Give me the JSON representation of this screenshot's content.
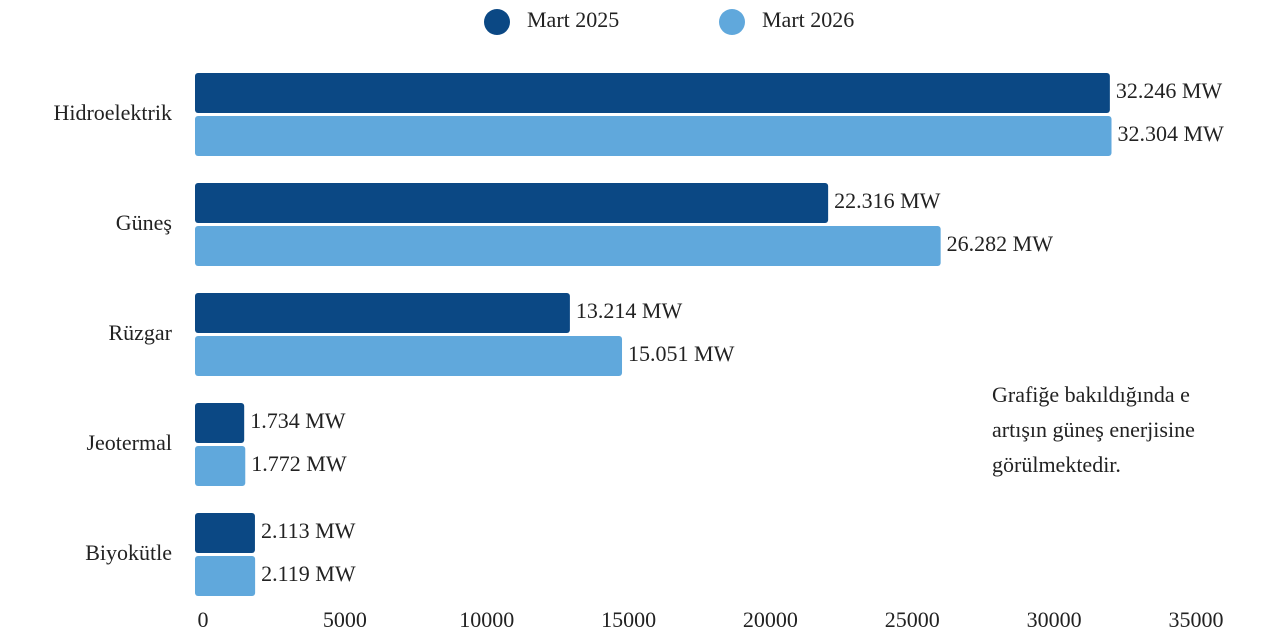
{
  "chart_data": {
    "type": "bar",
    "orientation": "horizontal",
    "categories": [
      "Hidroelektrik",
      "Güneş",
      "Rüzgar",
      "Jeotermal",
      "Biyokütle"
    ],
    "series": [
      {
        "name": "Mart 2025",
        "color": "#0b4884",
        "values": [
          32246,
          22316,
          13214,
          1734,
          2113
        ],
        "value_labels": [
          "32.246 MW",
          "22.316 MW",
          "13.214 MW",
          "1.734 MW",
          "2.113 MW"
        ]
      },
      {
        "name": "Mart 2026",
        "color": "#60a8dc",
        "values": [
          32304,
          26282,
          15051,
          1772,
          2119
        ],
        "value_labels": [
          "32.304 MW",
          "26.282 MW",
          "15.051 MW",
          "1.772 MW",
          "2.119 MW"
        ]
      }
    ],
    "xlim": [
      0,
      35000
    ],
    "xticks": [
      0,
      5000,
      10000,
      15000,
      20000,
      25000,
      30000,
      35000
    ],
    "legend": "top",
    "annotation": [
      "Grafiğe bakıldığında e",
      "artışın güneş enerjisine",
      "görülmektedir."
    ]
  }
}
